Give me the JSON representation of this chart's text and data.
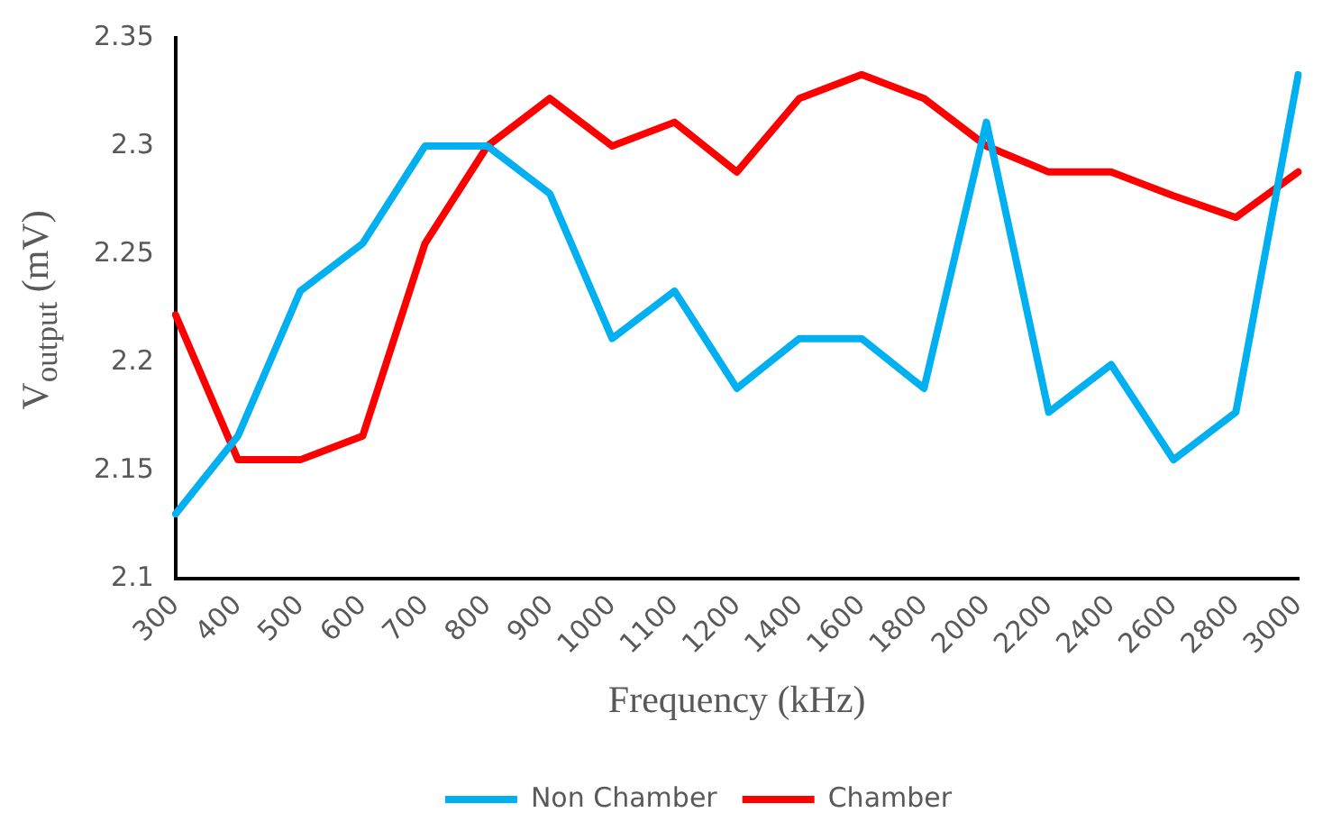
{
  "chart_data": {
    "type": "line",
    "xlabel": "Frequency (kHz)",
    "ylabel": "V$_{output}$ (mV)",
    "categories": [
      "300",
      "400",
      "500",
      "600",
      "700",
      "800",
      "900",
      "1000",
      "1100",
      "1200",
      "1400",
      "1600",
      "1800",
      "2000",
      "2200",
      "2400",
      "2600",
      "2800",
      "3000"
    ],
    "series": [
      {
        "name": "Non Chamber",
        "color": "#00b0f0",
        "values": [
          2.13,
          2.166,
          2.233,
          2.255,
          2.3,
          2.3,
          2.278,
          2.211,
          2.233,
          2.188,
          2.211,
          2.211,
          2.188,
          2.311,
          2.177,
          2.199,
          2.155,
          2.177,
          2.333
        ]
      },
      {
        "name": "Chamber",
        "color": "#ff0000",
        "values": [
          2.222,
          2.155,
          2.155,
          2.166,
          2.255,
          2.3,
          2.322,
          2.3,
          2.311,
          2.288,
          2.322,
          2.333,
          2.322,
          2.3,
          2.288,
          2.288,
          2.277,
          2.267,
          2.288
        ]
      }
    ],
    "ylim": [
      2.1,
      2.35
    ],
    "yticks": [
      2.1,
      2.15,
      2.2,
      2.25,
      2.3,
      2.35
    ],
    "grid": false,
    "legend": "bottom",
    "marker": "none",
    "line_style": "solid"
  }
}
